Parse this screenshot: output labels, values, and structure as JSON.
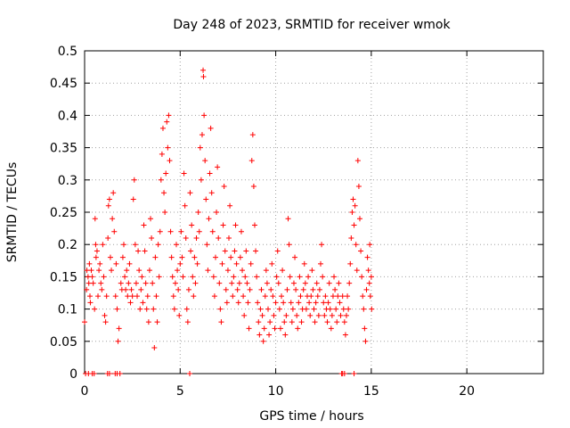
{
  "chart_data": {
    "type": "scatter",
    "title": "Day 248 of 2023, SRMTID for receiver wmok",
    "xlabel": "GPS time / hours",
    "ylabel": "SRMTID / TECUs",
    "xlim": [
      0,
      24
    ],
    "ylim": [
      0,
      0.5
    ],
    "xticks": [
      0,
      5,
      10,
      15,
      20
    ],
    "yticks": [
      0,
      0.05,
      0.1,
      0.15,
      0.2,
      0.25,
      0.3,
      0.35,
      0.4,
      0.45,
      0.5
    ],
    "xtick_labels": [
      "0",
      "5",
      "10",
      "15",
      "20"
    ],
    "ytick_labels": [
      "0",
      "0.05",
      "0.1",
      "0.15",
      "0.2",
      "0.25",
      "0.3",
      "0.35",
      "0.4",
      "0.45",
      "0.5"
    ],
    "grid": true,
    "marker": "+",
    "color": "#ff0000",
    "series": [
      {
        "name": "SRMTID",
        "points": [
          [
            0.0,
            0.08
          ],
          [
            0.05,
            0.0
          ],
          [
            0.1,
            0.13
          ],
          [
            0.12,
            0.16
          ],
          [
            0.18,
            0.15
          ],
          [
            0.2,
            0.0
          ],
          [
            0.22,
            0.14
          ],
          [
            0.25,
            0.17
          ],
          [
            0.28,
            0.12
          ],
          [
            0.3,
            0.11
          ],
          [
            0.35,
            0.16
          ],
          [
            0.4,
            0.15
          ],
          [
            0.45,
            0.14
          ],
          [
            0.5,
            0.0
          ],
          [
            0.52,
            0.1
          ],
          [
            0.55,
            0.24
          ],
          [
            0.58,
            0.2
          ],
          [
            0.6,
            0.18
          ],
          [
            0.65,
            0.19
          ],
          [
            0.7,
            0.12
          ],
          [
            0.75,
            0.16
          ],
          [
            0.8,
            0.17
          ],
          [
            0.85,
            0.14
          ],
          [
            0.9,
            0.13
          ],
          [
            0.95,
            0.2
          ],
          [
            1.0,
            0.15
          ],
          [
            1.05,
            0.09
          ],
          [
            1.1,
            0.08
          ],
          [
            1.15,
            0.12
          ],
          [
            1.2,
            0.0
          ],
          [
            1.22,
            0.21
          ],
          [
            1.25,
            0.26
          ],
          [
            1.3,
            0.27
          ],
          [
            1.35,
            0.18
          ],
          [
            1.4,
            0.16
          ],
          [
            1.45,
            0.24
          ],
          [
            1.5,
            0.28
          ],
          [
            1.55,
            0.22
          ],
          [
            1.6,
            0.0
          ],
          [
            1.62,
            0.12
          ],
          [
            1.65,
            0.17
          ],
          [
            1.7,
            0.1
          ],
          [
            1.75,
            0.05
          ],
          [
            1.8,
            0.07
          ],
          [
            1.85,
            0.0
          ],
          [
            1.9,
            0.14
          ],
          [
            1.95,
            0.13
          ],
          [
            2.0,
            0.18
          ],
          [
            2.05,
            0.2
          ],
          [
            2.1,
            0.15
          ],
          [
            2.15,
            0.13
          ],
          [
            2.2,
            0.16
          ],
          [
            2.25,
            0.12
          ],
          [
            2.3,
            0.14
          ],
          [
            2.35,
            0.17
          ],
          [
            2.4,
            0.11
          ],
          [
            2.45,
            0.13
          ],
          [
            2.5,
            0.12
          ],
          [
            2.55,
            0.27
          ],
          [
            2.6,
            0.3
          ],
          [
            2.65,
            0.2
          ],
          [
            2.7,
            0.14
          ],
          [
            2.75,
            0.12
          ],
          [
            2.8,
            0.19
          ],
          [
            2.85,
            0.16
          ],
          [
            2.9,
            0.1
          ],
          [
            2.95,
            0.13
          ],
          [
            3.0,
            0.15
          ],
          [
            3.05,
            0.11
          ],
          [
            3.1,
            0.23
          ],
          [
            3.15,
            0.19
          ],
          [
            3.2,
            0.14
          ],
          [
            3.25,
            0.1
          ],
          [
            3.3,
            0.12
          ],
          [
            3.35,
            0.08
          ],
          [
            3.4,
            0.16
          ],
          [
            3.45,
            0.24
          ],
          [
            3.5,
            0.21
          ],
          [
            3.55,
            0.14
          ],
          [
            3.6,
            0.1
          ],
          [
            3.65,
            0.04
          ],
          [
            3.7,
            0.18
          ],
          [
            3.75,
            0.12
          ],
          [
            3.8,
            0.08
          ],
          [
            3.85,
            0.2
          ],
          [
            3.9,
            0.15
          ],
          [
            3.95,
            0.22
          ],
          [
            4.0,
            0.3
          ],
          [
            4.05,
            0.34
          ],
          [
            4.1,
            0.38
          ],
          [
            4.15,
            0.28
          ],
          [
            4.2,
            0.25
          ],
          [
            4.25,
            0.31
          ],
          [
            4.3,
            0.39
          ],
          [
            4.35,
            0.35
          ],
          [
            4.4,
            0.4
          ],
          [
            4.45,
            0.33
          ],
          [
            4.5,
            0.22
          ],
          [
            4.55,
            0.18
          ],
          [
            4.6,
            0.15
          ],
          [
            4.65,
            0.12
          ],
          [
            4.7,
            0.1
          ],
          [
            4.75,
            0.14
          ],
          [
            4.8,
            0.2
          ],
          [
            4.85,
            0.16
          ],
          [
            4.9,
            0.13
          ],
          [
            4.95,
            0.09
          ],
          [
            5.0,
            0.17
          ],
          [
            5.05,
            0.22
          ],
          [
            5.1,
            0.18
          ],
          [
            5.15,
            0.15
          ],
          [
            5.2,
            0.31
          ],
          [
            5.25,
            0.26
          ],
          [
            5.3,
            0.21
          ],
          [
            5.35,
            0.1
          ],
          [
            5.4,
            0.08
          ],
          [
            5.45,
            0.13
          ],
          [
            5.5,
            0.0
          ],
          [
            5.52,
            0.28
          ],
          [
            5.55,
            0.19
          ],
          [
            5.6,
            0.23
          ],
          [
            5.65,
            0.15
          ],
          [
            5.7,
            0.12
          ],
          [
            5.75,
            0.18
          ],
          [
            5.8,
            0.14
          ],
          [
            5.85,
            0.21
          ],
          [
            5.9,
            0.17
          ],
          [
            5.95,
            0.25
          ],
          [
            6.0,
            0.22
          ],
          [
            6.05,
            0.35
          ],
          [
            6.1,
            0.3
          ],
          [
            6.15,
            0.37
          ],
          [
            6.2,
            0.47
          ],
          [
            6.22,
            0.46
          ],
          [
            6.25,
            0.4
          ],
          [
            6.3,
            0.33
          ],
          [
            6.35,
            0.27
          ],
          [
            6.4,
            0.2
          ],
          [
            6.45,
            0.16
          ],
          [
            6.5,
            0.24
          ],
          [
            6.55,
            0.31
          ],
          [
            6.6,
            0.38
          ],
          [
            6.65,
            0.28
          ],
          [
            6.7,
            0.22
          ],
          [
            6.75,
            0.15
          ],
          [
            6.8,
            0.12
          ],
          [
            6.85,
            0.18
          ],
          [
            6.9,
            0.25
          ],
          [
            6.95,
            0.32
          ],
          [
            7.0,
            0.21
          ],
          [
            7.05,
            0.14
          ],
          [
            7.1,
            0.1
          ],
          [
            7.15,
            0.08
          ],
          [
            7.2,
            0.17
          ],
          [
            7.25,
            0.23
          ],
          [
            7.3,
            0.29
          ],
          [
            7.35,
            0.19
          ],
          [
            7.4,
            0.13
          ],
          [
            7.45,
            0.11
          ],
          [
            7.5,
            0.16
          ],
          [
            7.55,
            0.21
          ],
          [
            7.6,
            0.26
          ],
          [
            7.65,
            0.18
          ],
          [
            7.7,
            0.14
          ],
          [
            7.75,
            0.12
          ],
          [
            7.8,
            0.15
          ],
          [
            7.85,
            0.19
          ],
          [
            7.9,
            0.23
          ],
          [
            7.95,
            0.17
          ],
          [
            8.0,
            0.13
          ],
          [
            8.05,
            0.11
          ],
          [
            8.1,
            0.14
          ],
          [
            8.15,
            0.18
          ],
          [
            8.2,
            0.22
          ],
          [
            8.25,
            0.16
          ],
          [
            8.3,
            0.12
          ],
          [
            8.35,
            0.09
          ],
          [
            8.4,
            0.15
          ],
          [
            8.45,
            0.19
          ],
          [
            8.5,
            0.14
          ],
          [
            8.55,
            0.11
          ],
          [
            8.6,
            0.07
          ],
          [
            8.65,
            0.13
          ],
          [
            8.7,
            0.17
          ],
          [
            8.75,
            0.33
          ],
          [
            8.8,
            0.37
          ],
          [
            8.85,
            0.29
          ],
          [
            8.9,
            0.23
          ],
          [
            8.95,
            0.19
          ],
          [
            9.0,
            0.15
          ],
          [
            9.05,
            0.11
          ],
          [
            9.1,
            0.08
          ],
          [
            9.15,
            0.06
          ],
          [
            9.2,
            0.1
          ],
          [
            9.25,
            0.13
          ],
          [
            9.3,
            0.09
          ],
          [
            9.35,
            0.05
          ],
          [
            9.4,
            0.07
          ],
          [
            9.45,
            0.12
          ],
          [
            9.5,
            0.16
          ],
          [
            9.55,
            0.14
          ],
          [
            9.6,
            0.1
          ],
          [
            9.65,
            0.06
          ],
          [
            9.7,
            0.08
          ],
          [
            9.75,
            0.13
          ],
          [
            9.8,
            0.17
          ],
          [
            9.85,
            0.12
          ],
          [
            9.9,
            0.09
          ],
          [
            9.95,
            0.07
          ],
          [
            10.0,
            0.11
          ],
          [
            10.05,
            0.15
          ],
          [
            10.1,
            0.19
          ],
          [
            10.15,
            0.14
          ],
          [
            10.2,
            0.1
          ],
          [
            10.25,
            0.07
          ],
          [
            10.3,
            0.12
          ],
          [
            10.35,
            0.16
          ],
          [
            10.4,
            0.11
          ],
          [
            10.45,
            0.08
          ],
          [
            10.5,
            0.06
          ],
          [
            10.55,
            0.09
          ],
          [
            10.6,
            0.13
          ],
          [
            10.65,
            0.24
          ],
          [
            10.7,
            0.2
          ],
          [
            10.75,
            0.15
          ],
          [
            10.8,
            0.11
          ],
          [
            10.85,
            0.08
          ],
          [
            10.9,
            0.1
          ],
          [
            10.95,
            0.14
          ],
          [
            11.0,
            0.18
          ],
          [
            11.05,
            0.13
          ],
          [
            11.1,
            0.09
          ],
          [
            11.15,
            0.07
          ],
          [
            11.2,
            0.11
          ],
          [
            11.25,
            0.15
          ],
          [
            11.3,
            0.12
          ],
          [
            11.35,
            0.08
          ],
          [
            11.4,
            0.1
          ],
          [
            11.45,
            0.13
          ],
          [
            11.5,
            0.17
          ],
          [
            11.55,
            0.14
          ],
          [
            11.6,
            0.1
          ],
          [
            11.65,
            0.12
          ],
          [
            11.7,
            0.15
          ],
          [
            11.75,
            0.11
          ],
          [
            11.8,
            0.09
          ],
          [
            11.85,
            0.12
          ],
          [
            11.9,
            0.16
          ],
          [
            11.95,
            0.13
          ],
          [
            12.0,
            0.1
          ],
          [
            12.05,
            0.08
          ],
          [
            12.1,
            0.11
          ],
          [
            12.15,
            0.14
          ],
          [
            12.2,
            0.12
          ],
          [
            12.25,
            0.09
          ],
          [
            12.3,
            0.13
          ],
          [
            12.35,
            0.17
          ],
          [
            12.4,
            0.2
          ],
          [
            12.45,
            0.15
          ],
          [
            12.5,
            0.11
          ],
          [
            12.55,
            0.09
          ],
          [
            12.6,
            0.12
          ],
          [
            12.65,
            0.1
          ],
          [
            12.7,
            0.08
          ],
          [
            12.75,
            0.11
          ],
          [
            12.8,
            0.14
          ],
          [
            12.85,
            0.1
          ],
          [
            12.9,
            0.07
          ],
          [
            12.95,
            0.09
          ],
          [
            13.0,
            0.12
          ],
          [
            13.05,
            0.15
          ],
          [
            13.1,
            0.13
          ],
          [
            13.15,
            0.1
          ],
          [
            13.2,
            0.08
          ],
          [
            13.25,
            0.12
          ],
          [
            13.3,
            0.14
          ],
          [
            13.35,
            0.11
          ],
          [
            13.4,
            0.09
          ],
          [
            13.45,
            0.0
          ],
          [
            13.5,
            0.12
          ],
          [
            13.55,
            0.1
          ],
          [
            13.6,
            0.08
          ],
          [
            13.65,
            0.06
          ],
          [
            13.7,
            0.09
          ],
          [
            13.75,
            0.12
          ],
          [
            13.8,
            0.1
          ],
          [
            13.85,
            0.14
          ],
          [
            13.9,
            0.17
          ],
          [
            13.95,
            0.21
          ],
          [
            14.0,
            0.25
          ],
          [
            14.05,
            0.27
          ],
          [
            14.1,
            0.23
          ],
          [
            14.15,
            0.26
          ],
          [
            14.2,
            0.2
          ],
          [
            14.25,
            0.16
          ],
          [
            14.3,
            0.33
          ],
          [
            14.35,
            0.29
          ],
          [
            14.4,
            0.24
          ],
          [
            14.45,
            0.19
          ],
          [
            14.5,
            0.15
          ],
          [
            14.55,
            0.12
          ],
          [
            14.6,
            0.1
          ],
          [
            14.65,
            0.07
          ],
          [
            14.7,
            0.05
          ],
          [
            14.75,
            0.13
          ],
          [
            14.8,
            0.18
          ],
          [
            14.85,
            0.16
          ],
          [
            14.9,
            0.14
          ],
          [
            14.95,
            0.12
          ],
          [
            15.0,
            0.15
          ],
          [
            15.02,
            0.1
          ],
          [
            14.92,
            0.2
          ],
          [
            0.4,
            0.0
          ],
          [
            1.3,
            0.0
          ],
          [
            1.7,
            0.0
          ],
          [
            14.1,
            0.0
          ],
          [
            13.5,
            0.0
          ],
          [
            13.6,
            0.0
          ]
        ]
      }
    ]
  }
}
